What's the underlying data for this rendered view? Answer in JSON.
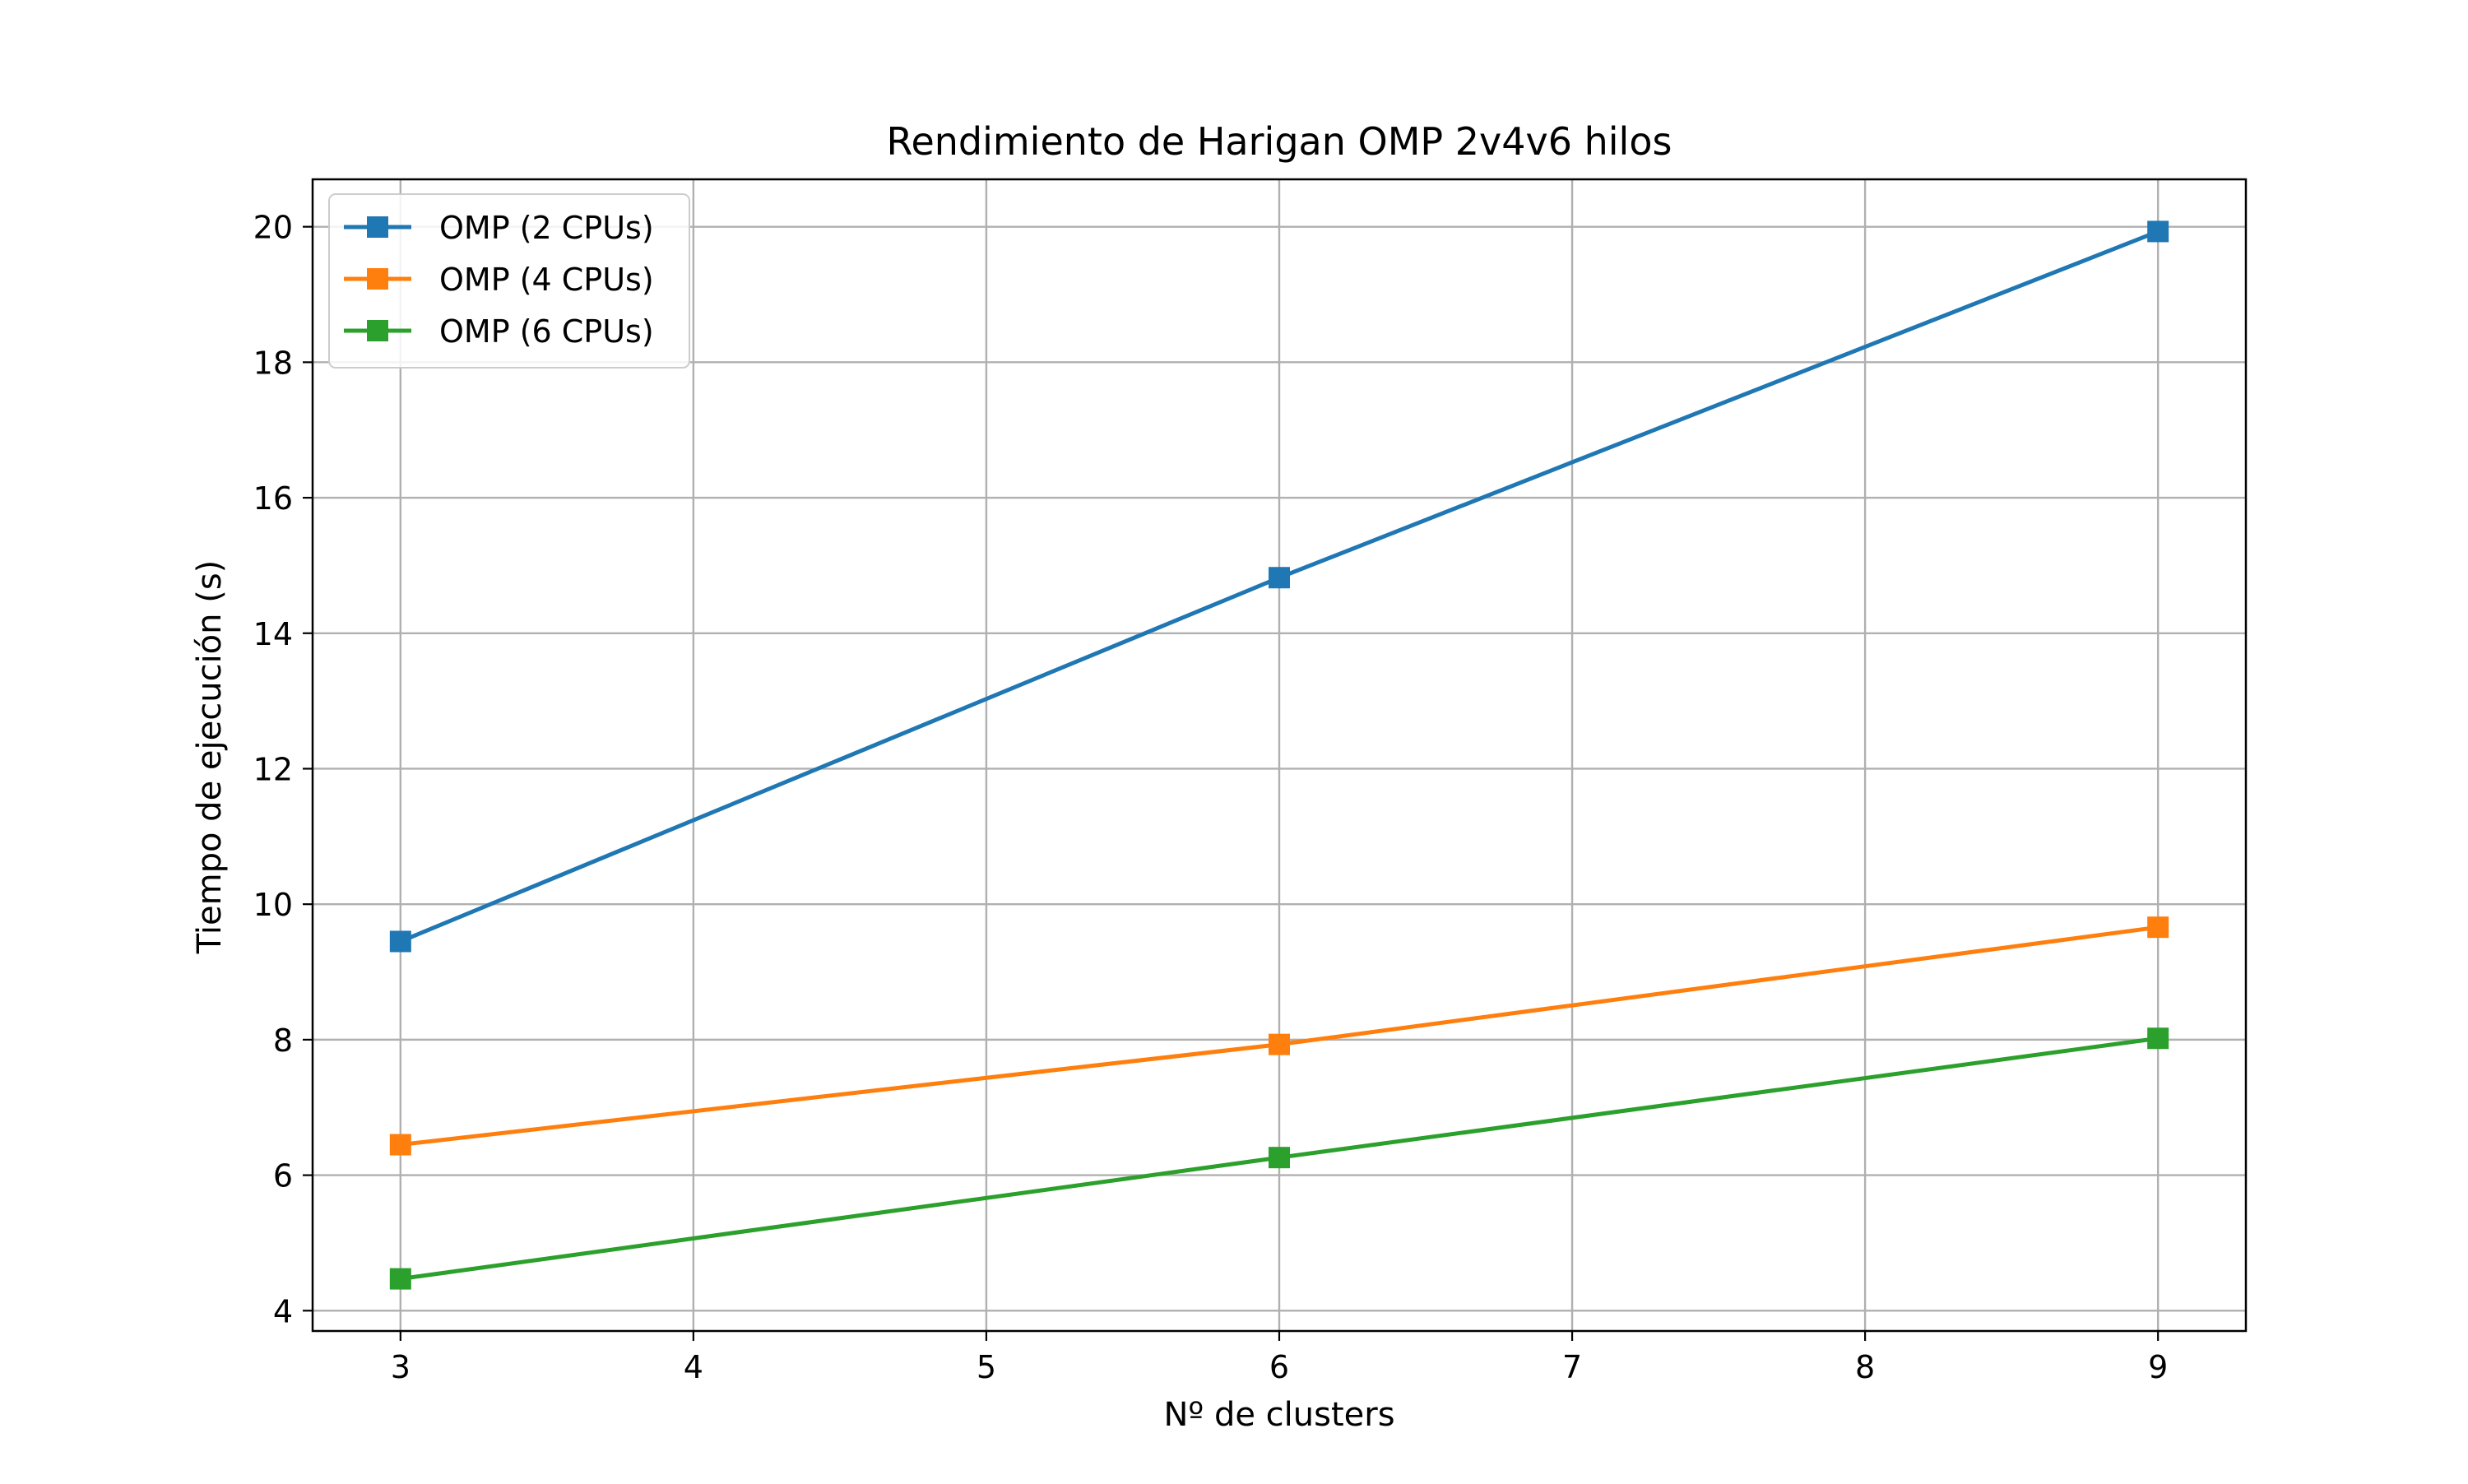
{
  "chart_data": {
    "type": "line",
    "title": "Rendimiento de Harigan OMP 2v4v6 hilos",
    "xlabel": "Nº de clusters",
    "ylabel": "Tiempo de ejecución (s)",
    "xlim": [
      2.7,
      9.3
    ],
    "ylim": [
      3.7,
      20.7
    ],
    "xticks": [
      3,
      4,
      5,
      6,
      7,
      8,
      9
    ],
    "yticks": [
      4,
      6,
      8,
      10,
      12,
      14,
      16,
      18,
      20
    ],
    "grid": true,
    "legend_position": "upper-left",
    "marker": "square",
    "x": [
      3,
      6,
      9
    ],
    "series": [
      {
        "name": "OMP (2 CPUs)",
        "color": "#1f77b4",
        "values": [
          9.45,
          14.82,
          19.93
        ]
      },
      {
        "name": "OMP (4 CPUs)",
        "color": "#ff7f0e",
        "values": [
          6.45,
          7.93,
          9.66
        ]
      },
      {
        "name": "OMP (6 CPUs)",
        "color": "#2ca02c",
        "values": [
          4.47,
          6.26,
          8.02
        ]
      }
    ]
  }
}
